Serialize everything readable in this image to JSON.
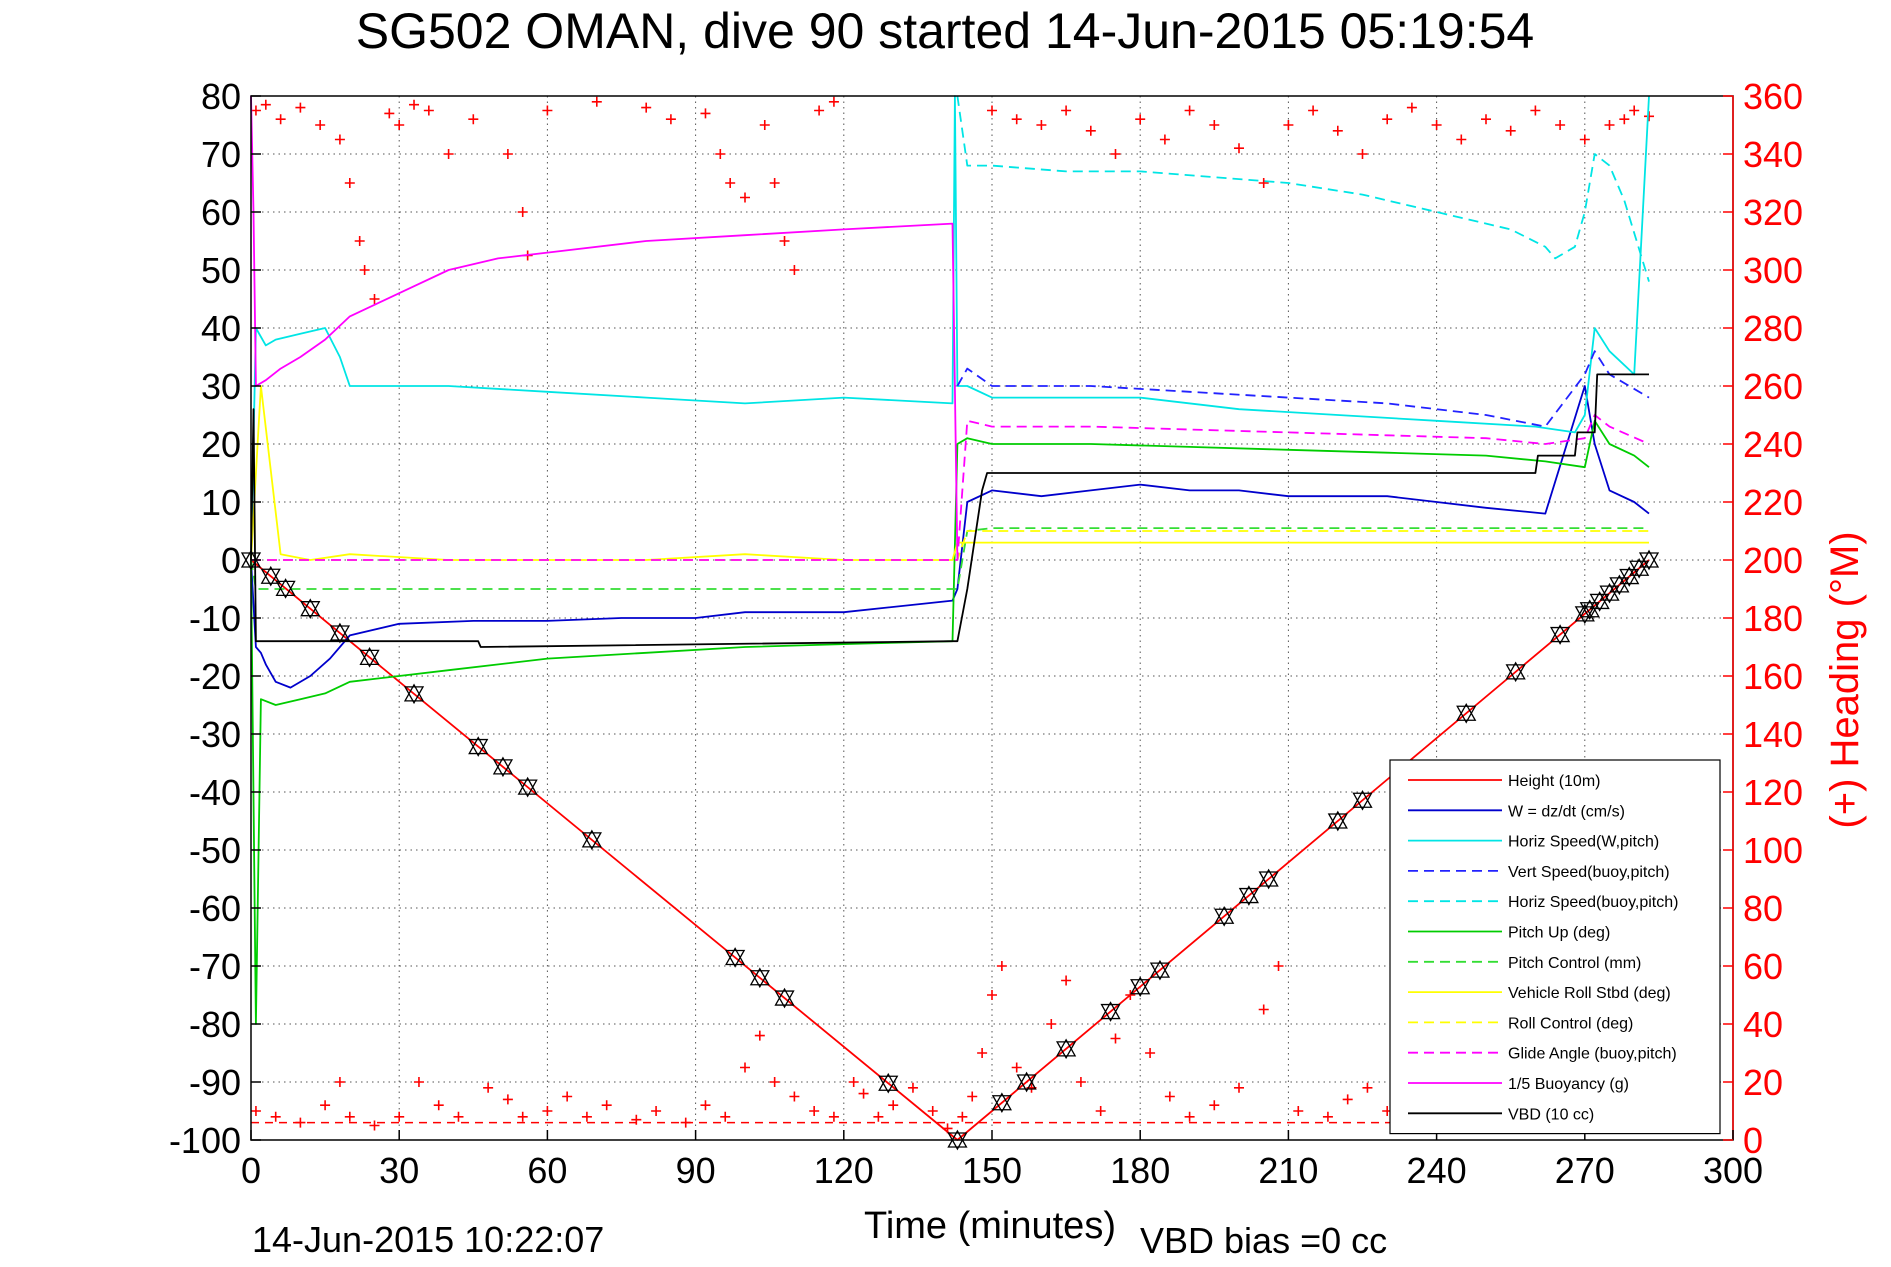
{
  "chart_data": {
    "type": "line",
    "title": "SG502 OMAN, dive 90 started 14-Jun-2015 05:19:54",
    "xlabel": "Time (minutes)",
    "ylabel": "",
    "y2label": "(+) Heading (°M)",
    "footer_left": "14-Jun-2015 10:22:07",
    "footer_right": "VBD bias =0 cc",
    "xlim": [
      0,
      300
    ],
    "ylim": [
      -100,
      80
    ],
    "y2lim": [
      0,
      360
    ],
    "xticks": [
      0,
      30,
      60,
      90,
      120,
      150,
      180,
      210,
      240,
      270,
      300
    ],
    "yticks": [
      -100,
      -90,
      -80,
      -70,
      -60,
      -50,
      -40,
      -30,
      -20,
      -10,
      0,
      10,
      20,
      30,
      40,
      50,
      60,
      70,
      80
    ],
    "y2ticks": [
      0,
      20,
      40,
      60,
      80,
      100,
      120,
      140,
      160,
      180,
      200,
      220,
      240,
      260,
      280,
      300,
      320,
      340,
      360
    ],
    "grid": true,
    "legend_position": "bottom-right",
    "colors": {
      "red": "#ff0000",
      "blue": "#0000cc",
      "cyan": "#00e5e5",
      "green": "#00cc00",
      "yellow": "#ffff00",
      "magenta": "#ff00ff",
      "black": "#000000",
      "heading": "#ff0000"
    },
    "series": [
      {
        "name": "Height (10m)",
        "color": "#ff0000",
        "style": "solid",
        "x": [
          0,
          143,
          283
        ],
        "y": [
          0,
          -100,
          0
        ]
      },
      {
        "name": "W = dz/dt (cm/s)",
        "color": "#0000cc",
        "style": "solid",
        "x": [
          0,
          1,
          2,
          3,
          5,
          8,
          12,
          16,
          18,
          20,
          30,
          45,
          60,
          75,
          90,
          100,
          120,
          142,
          143,
          145,
          150,
          160,
          170,
          180,
          190,
          200,
          210,
          220,
          230,
          240,
          250,
          262,
          270,
          272,
          275,
          280,
          283
        ],
        "y": [
          0,
          -15,
          -16,
          -18,
          -21,
          -22,
          -20,
          -17,
          -15,
          -13,
          -11,
          -10.5,
          -10.5,
          -10,
          -10,
          -9,
          -9,
          -7,
          -5,
          10,
          12,
          11,
          12,
          13,
          12,
          12,
          11,
          11,
          11,
          10,
          9,
          8,
          30,
          20,
          12,
          10,
          8
        ]
      },
      {
        "name": "Horiz Speed(W,pitch)",
        "color": "#00e5e5",
        "style": "solid",
        "x": [
          0,
          1,
          3,
          5,
          10,
          15,
          18,
          20,
          40,
          60,
          80,
          100,
          120,
          142,
          142.5,
          143,
          145,
          150,
          160,
          180,
          200,
          220,
          240,
          260,
          268,
          270,
          272,
          275,
          280,
          283
        ],
        "y": [
          0,
          40,
          37,
          38,
          39,
          40,
          35,
          30,
          30,
          29,
          28,
          27,
          28,
          27,
          80,
          30,
          30,
          28,
          28,
          28,
          26,
          25,
          24,
          23,
          22,
          25,
          40,
          36,
          32,
          80
        ]
      },
      {
        "name": "Vert Speed(buoy,pitch)",
        "color": "#2222ff",
        "style": "dashed",
        "x": [
          143,
          145,
          150,
          170,
          190,
          210,
          230,
          250,
          262,
          270,
          272,
          275,
          283
        ],
        "y": [
          30,
          33,
          30,
          30,
          29,
          28,
          27,
          25,
          23,
          32,
          36,
          32,
          28
        ]
      },
      {
        "name": "Horiz Speed(buoy,pitch)",
        "color": "#00e5e5",
        "style": "dashed",
        "x": [
          143,
          145,
          150,
          165,
          180,
          195,
          210,
          225,
          240,
          255,
          262,
          264,
          268,
          270,
          272,
          275,
          278,
          283
        ],
        "y": [
          80,
          68,
          68,
          67,
          67,
          66,
          65,
          63,
          60,
          57,
          54,
          52,
          54,
          60,
          70,
          68,
          62,
          48
        ]
      },
      {
        "name": "Pitch Up (deg)",
        "color": "#00cc00",
        "style": "solid",
        "x": [
          0,
          1,
          2,
          5,
          10,
          15,
          20,
          40,
          60,
          80,
          100,
          120,
          142,
          143,
          145,
          150,
          170,
          190,
          210,
          230,
          250,
          262,
          270,
          272,
          275,
          280,
          283
        ],
        "y": [
          0,
          -80,
          -24,
          -25,
          -24,
          -23,
          -21,
          -19,
          -17,
          -16,
          -15,
          -14.5,
          -14,
          20,
          21,
          20,
          20,
          19.5,
          19,
          18.5,
          18,
          17,
          16,
          24,
          20,
          18,
          16
        ]
      },
      {
        "name": "Pitch Control (mm)",
        "color": "#33dd33",
        "style": "dashed",
        "x": [
          0,
          1,
          2,
          142,
          143,
          145,
          150,
          283
        ],
        "y": [
          0,
          -5,
          -5,
          -5,
          -5,
          5,
          5.5,
          5.5
        ]
      },
      {
        "name": "Vehicle Roll Stbd (deg)",
        "color": "#ffff00",
        "style": "solid",
        "x": [
          0,
          2,
          6,
          12,
          20,
          40,
          60,
          80,
          100,
          120,
          142,
          143,
          150,
          180,
          210,
          240,
          270,
          283
        ],
        "y": [
          0,
          30,
          1,
          0,
          1,
          0,
          0,
          0,
          1,
          0,
          0,
          3,
          3,
          3,
          3,
          3,
          3,
          3
        ]
      },
      {
        "name": "Roll Control (deg)",
        "color": "#ffff00",
        "style": "dashed",
        "x": [
          0,
          143,
          145,
          150,
          283
        ],
        "y": [
          0,
          0,
          5,
          5,
          5
        ]
      },
      {
        "name": "Glide Angle (buoy,pitch)",
        "color": "#ff00ff",
        "style": "dashed",
        "x": [
          0,
          143,
          145,
          150,
          170,
          190,
          210,
          230,
          250,
          262,
          270,
          272,
          275,
          283
        ],
        "y": [
          0,
          0,
          24,
          23,
          23,
          22.5,
          22,
          21.5,
          21,
          20,
          21,
          25,
          23,
          20
        ]
      },
      {
        "name": "1/5 Buoyancy (g)",
        "color": "#ff00ff",
        "style": "solid",
        "x": [
          0,
          0.5,
          1,
          3,
          6,
          10,
          15,
          20,
          25,
          30,
          40,
          50,
          60,
          80,
          100,
          120,
          142,
          143
        ],
        "y": [
          80,
          60,
          30,
          31,
          33,
          35,
          38,
          42,
          44,
          46,
          50,
          52,
          53,
          55,
          56,
          57,
          58,
          0
        ]
      },
      {
        "name": "VBD (10 cc)",
        "color": "#000000",
        "style": "solid",
        "x": [
          0,
          0.5,
          1,
          46,
          46.5,
          142,
          143,
          145,
          148,
          149,
          260,
          260.5,
          268,
          268.5,
          272,
          272.5,
          283
        ],
        "y": [
          0,
          26,
          -14,
          -14,
          -15,
          -14,
          -14,
          -5,
          12,
          15,
          15,
          18,
          18,
          22,
          22,
          32,
          32
        ]
      }
    ],
    "heading": {
      "name": "(+) Heading (°M)",
      "marker": "+",
      "color": "#ff0000",
      "descent_points": [
        [
          1,
          355
        ],
        [
          3,
          357
        ],
        [
          6,
          352
        ],
        [
          10,
          356
        ],
        [
          14,
          350
        ],
        [
          18,
          345
        ],
        [
          20,
          330
        ],
        [
          22,
          310
        ],
        [
          23,
          300
        ],
        [
          25,
          290
        ],
        [
          28,
          354
        ],
        [
          30,
          350
        ],
        [
          33,
          357
        ],
        [
          36,
          355
        ],
        [
          40,
          340
        ],
        [
          45,
          352
        ],
        [
          52,
          340
        ],
        [
          55,
          320
        ],
        [
          56,
          305
        ],
        [
          60,
          355
        ],
        [
          70,
          358
        ],
        [
          80,
          356
        ],
        [
          85,
          352
        ],
        [
          92,
          354
        ],
        [
          95,
          340
        ],
        [
          97,
          330
        ],
        [
          100,
          325
        ],
        [
          104,
          350
        ],
        [
          106,
          330
        ],
        [
          108,
          310
        ],
        [
          110,
          300
        ],
        [
          115,
          355
        ],
        [
          118,
          358
        ]
      ],
      "bottom_points": [
        [
          1,
          10
        ],
        [
          5,
          8
        ],
        [
          10,
          6
        ],
        [
          15,
          12
        ],
        [
          18,
          20
        ],
        [
          20,
          8
        ],
        [
          25,
          5
        ],
        [
          30,
          8
        ],
        [
          34,
          20
        ],
        [
          38,
          12
        ],
        [
          42,
          8
        ],
        [
          48,
          18
        ],
        [
          52,
          14
        ],
        [
          55,
          8
        ],
        [
          60,
          10
        ],
        [
          64,
          15
        ],
        [
          68,
          8
        ],
        [
          72,
          12
        ],
        [
          78,
          7
        ],
        [
          82,
          10
        ],
        [
          88,
          6
        ],
        [
          92,
          12
        ],
        [
          96,
          8
        ],
        [
          100,
          25
        ],
        [
          103,
          36
        ],
        [
          106,
          20
        ],
        [
          110,
          15
        ],
        [
          114,
          10
        ],
        [
          118,
          8
        ],
        [
          122,
          20
        ],
        [
          124,
          16
        ],
        [
          127,
          8
        ],
        [
          130,
          12
        ],
        [
          134,
          18
        ],
        [
          138,
          10
        ],
        [
          141,
          4
        ],
        [
          144,
          8
        ],
        [
          146,
          15
        ],
        [
          148,
          30
        ],
        [
          150,
          50
        ],
        [
          152,
          60
        ],
        [
          155,
          25
        ],
        [
          158,
          18
        ],
        [
          162,
          40
        ],
        [
          165,
          55
        ],
        [
          168,
          20
        ],
        [
          172,
          10
        ],
        [
          175,
          35
        ],
        [
          178,
          50
        ],
        [
          182,
          30
        ],
        [
          186,
          15
        ],
        [
          190,
          8
        ],
        [
          195,
          12
        ],
        [
          200,
          18
        ],
        [
          205,
          45
        ],
        [
          208,
          60
        ],
        [
          212,
          10
        ],
        [
          218,
          8
        ],
        [
          222,
          14
        ],
        [
          226,
          18
        ],
        [
          230,
          10
        ],
        [
          235,
          8
        ],
        [
          240,
          12
        ],
        [
          245,
          18
        ],
        [
          250,
          10
        ],
        [
          255,
          14
        ],
        [
          260,
          18
        ],
        [
          265,
          25
        ],
        [
          268,
          40
        ],
        [
          270,
          50
        ],
        [
          272,
          40
        ],
        [
          275,
          20
        ],
        [
          278,
          40
        ],
        [
          280,
          42
        ],
        [
          283,
          35
        ]
      ],
      "ascent_points": [
        [
          150,
          355
        ],
        [
          155,
          352
        ],
        [
          160,
          350
        ],
        [
          165,
          355
        ],
        [
          170,
          348
        ],
        [
          175,
          340
        ],
        [
          180,
          352
        ],
        [
          185,
          345
        ],
        [
          190,
          355
        ],
        [
          195,
          350
        ],
        [
          200,
          342
        ],
        [
          205,
          330
        ],
        [
          210,
          350
        ],
        [
          215,
          355
        ],
        [
          220,
          348
        ],
        [
          225,
          340
        ],
        [
          230,
          352
        ],
        [
          235,
          356
        ],
        [
          240,
          350
        ],
        [
          245,
          345
        ],
        [
          250,
          352
        ],
        [
          255,
          348
        ],
        [
          260,
          355
        ],
        [
          265,
          350
        ],
        [
          270,
          345
        ],
        [
          275,
          350
        ],
        [
          278,
          352
        ],
        [
          280,
          355
        ],
        [
          283,
          353
        ]
      ],
      "reference_line_y2": 6
    },
    "height_markers": {
      "marker": "triangle",
      "x": [
        0,
        4,
        7,
        12,
        18,
        24,
        33,
        46,
        51,
        56,
        69,
        98,
        103,
        108,
        129,
        143,
        152,
        157,
        165,
        174,
        180,
        184,
        197,
        202,
        206,
        220,
        225,
        246,
        256,
        265,
        270,
        271,
        273,
        275,
        277,
        279,
        281,
        283
      ]
    }
  },
  "legend": [
    {
      "label": "Height (10m)",
      "color": "#ff0000",
      "style": "solid"
    },
    {
      "label": "W = dz/dt (cm/s)",
      "color": "#0000cc",
      "style": "solid"
    },
    {
      "label": "Horiz Speed(W,pitch)",
      "color": "#00e5e5",
      "style": "solid"
    },
    {
      "label": "Vert Speed(buoy,pitch)",
      "color": "#2222ff",
      "style": "dashed"
    },
    {
      "label": "Horiz Speed(buoy,pitch)",
      "color": "#00e5e5",
      "style": "dashed"
    },
    {
      "label": "Pitch Up (deg)",
      "color": "#00cc00",
      "style": "solid"
    },
    {
      "label": "Pitch Control (mm)",
      "color": "#33dd33",
      "style": "dashed"
    },
    {
      "label": "Vehicle Roll Stbd (deg)",
      "color": "#ffff00",
      "style": "solid"
    },
    {
      "label": "Roll Control (deg)",
      "color": "#ffff00",
      "style": "dashed"
    },
    {
      "label": "Glide Angle (buoy,pitch)",
      "color": "#ff00ff",
      "style": "dashed"
    },
    {
      "label": "1/5 Buoyancy (g)",
      "color": "#ff00ff",
      "style": "solid"
    },
    {
      "label": "VBD (10 cc)",
      "color": "#000000",
      "style": "solid"
    }
  ]
}
